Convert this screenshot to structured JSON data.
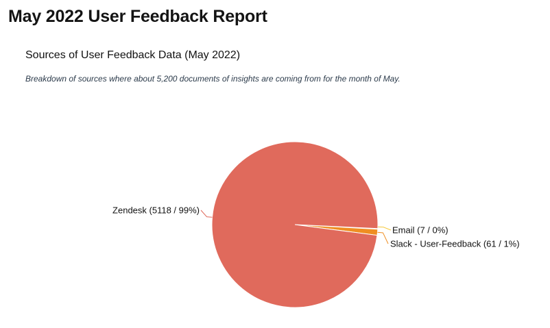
{
  "report": {
    "title": "May 2022 User Feedback Report"
  },
  "chart_data": {
    "type": "pie",
    "title": "Sources of User Feedback Data (May 2022)",
    "subtitle": "Breakdown of sources where about 5,200 documents of insights are coming from for the month of May.",
    "slices": [
      {
        "name": "Email",
        "value": 7,
        "label": "Email (7 / 0%)",
        "color": "#f5c93d"
      },
      {
        "name": "Slack - User-Feedback",
        "value": 61,
        "label": "Slack - User-Feedback (61 / 1%)",
        "color": "#ef8e22"
      },
      {
        "name": "Zendesk",
        "value": 5118,
        "label": "Zendesk (5118 / 99%)",
        "color": "#e06a5c"
      }
    ],
    "legend": "none",
    "start_angle_deg": 90,
    "direction": "clockwise"
  }
}
